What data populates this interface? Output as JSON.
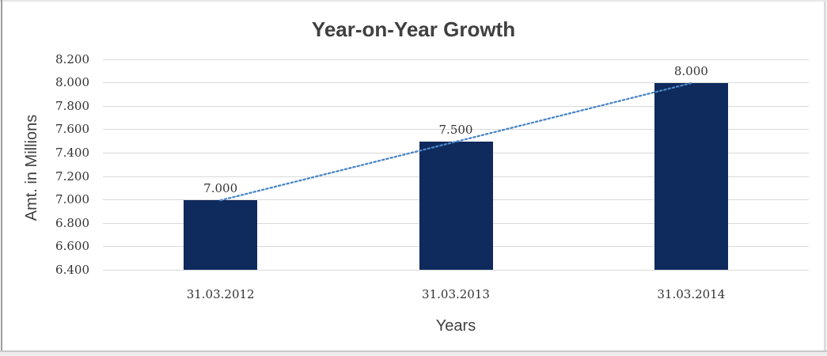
{
  "chart_data": {
    "type": "bar",
    "title": "Year-on-Year Growth",
    "xlabel": "Years",
    "ylabel": "Amt. in Millions",
    "categories": [
      "31.03.2012",
      "31.03.2013",
      "31.03.2014"
    ],
    "series": [
      {
        "name": "Amt. in Millions",
        "values": [
          7.0,
          7.5,
          8.0
        ],
        "value_labels": [
          "7.000",
          "7.500",
          "8.000"
        ]
      }
    ],
    "ylim": [
      6.4,
      8.2
    ],
    "yticks": [
      {
        "value": 6.4,
        "label": "6.400"
      },
      {
        "value": 6.6,
        "label": "6.600"
      },
      {
        "value": 6.8,
        "label": "6.800"
      },
      {
        "value": 7.0,
        "label": "7.000"
      },
      {
        "value": 7.2,
        "label": "7.200"
      },
      {
        "value": 7.4,
        "label": "7.400"
      },
      {
        "value": 7.6,
        "label": "7.600"
      },
      {
        "value": 7.8,
        "label": "7.800"
      },
      {
        "value": 8.0,
        "label": "8.000"
      },
      {
        "value": 8.2,
        "label": "8.200"
      }
    ],
    "grid": true,
    "legend": "none",
    "trendline": {
      "type": "linear",
      "style": "dotted"
    },
    "colors": {
      "bar": "#0f2a5c",
      "trendline": "#4a86c8",
      "gridline": "#d9d9d9",
      "tick_text": "#333333",
      "title_text": "#404040"
    }
  }
}
